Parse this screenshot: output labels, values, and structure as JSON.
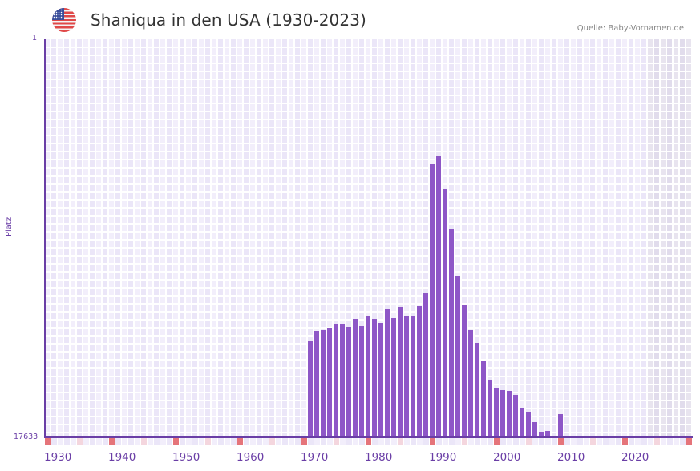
{
  "header": {
    "title": "Shaniqua in den USA (1930-2023)",
    "source": "Quelle: Baby-Vornamen.de",
    "flag_icon": "usa-flag-icon"
  },
  "axis": {
    "ylabel": "Platz",
    "ytick_top": "1",
    "ytick_bottom": "17633",
    "xticks": [
      "1930",
      "1940",
      "1950",
      "1960",
      "1970",
      "1980",
      "1990",
      "2000",
      "2010",
      "2020"
    ]
  },
  "colors": {
    "bar": "#8e57c7",
    "axis": "#6a3ea6",
    "grid_a": "#f2eefb",
    "grid_b": "#ebe6f8",
    "future_a": "#e8e4ef",
    "future_b": "#e1dcec",
    "decade_mark": "#e5747a",
    "half_decade_mark": "#f4d6de"
  },
  "chart_data": {
    "type": "bar",
    "title": "Shaniqua in den USA (1930-2023)",
    "xlabel": "",
    "ylabel": "Platz",
    "ylim": [
      17633,
      1
    ],
    "y_inverted": true,
    "x_range": [
      1930,
      2030
    ],
    "grid": true,
    "legend": null,
    "years": [
      1971,
      1972,
      1973,
      1974,
      1975,
      1976,
      1977,
      1978,
      1979,
      1980,
      1981,
      1982,
      1983,
      1984,
      1985,
      1986,
      1987,
      1988,
      1989,
      1990,
      1991,
      1992,
      1993,
      1994,
      1995,
      1996,
      1997,
      1998,
      1999,
      2000,
      2001,
      2002,
      2003,
      2004,
      2005,
      2006,
      2007,
      2008,
      2010
    ],
    "ranks": [
      13365,
      12938,
      12867,
      12796,
      12618,
      12618,
      12725,
      12405,
      12689,
      12263,
      12405,
      12583,
      11943,
      12334,
      11836,
      12263,
      12263,
      11801,
      11232,
      5510,
      5155,
      6612,
      8424,
      10486,
      11766,
      12867,
      13436,
      14254,
      15072,
      15427,
      15534,
      15569,
      15747,
      16316,
      16529,
      16956,
      17419,
      17348,
      16600
    ]
  }
}
